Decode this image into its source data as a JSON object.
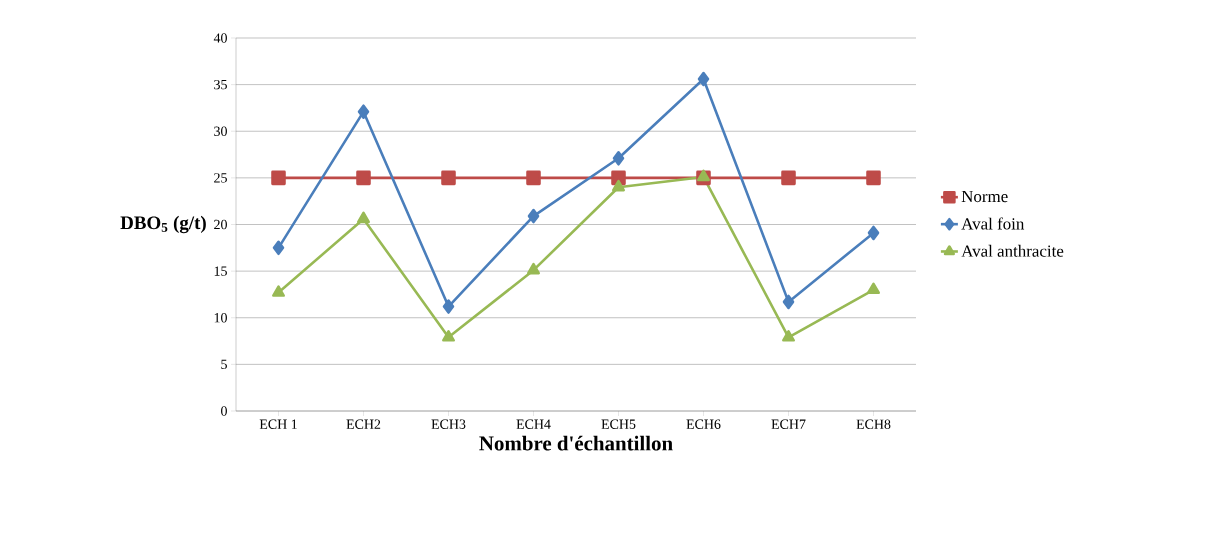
{
  "chart_data": {
    "type": "line",
    "xlabel": "Nombre d'échantillon",
    "ylabel": "DBO$_{5}$ (g/t)",
    "categories": [
      "ECH 1",
      "ECH2",
      "ECH3",
      "ECH4",
      "ECH5",
      "ECH6",
      "ECH7",
      "ECH8"
    ],
    "series": [
      {
        "name": "Norme",
        "color": "#be4b48",
        "marker": "square",
        "values": [
          25,
          25,
          25,
          25,
          25,
          25,
          25,
          25
        ]
      },
      {
        "name": "Aval foin",
        "color": "#4a7ebb",
        "marker": "diamond",
        "values": [
          17.5,
          32.1,
          11.2,
          20.9,
          27.1,
          35.6,
          11.7,
          19.1
        ]
      },
      {
        "name": "Aval anthracite",
        "color": "#98b954",
        "marker": "triangle",
        "values": [
          12.7,
          20.6,
          7.9,
          15.1,
          24.0,
          25.1,
          7.9,
          13.0
        ]
      }
    ],
    "ylim": [
      0,
      40
    ],
    "yticks": [
      0,
      5,
      10,
      15,
      20,
      25,
      30,
      35,
      40
    ],
    "grid": "y",
    "legend": "right",
    "line_style": "solid"
  }
}
